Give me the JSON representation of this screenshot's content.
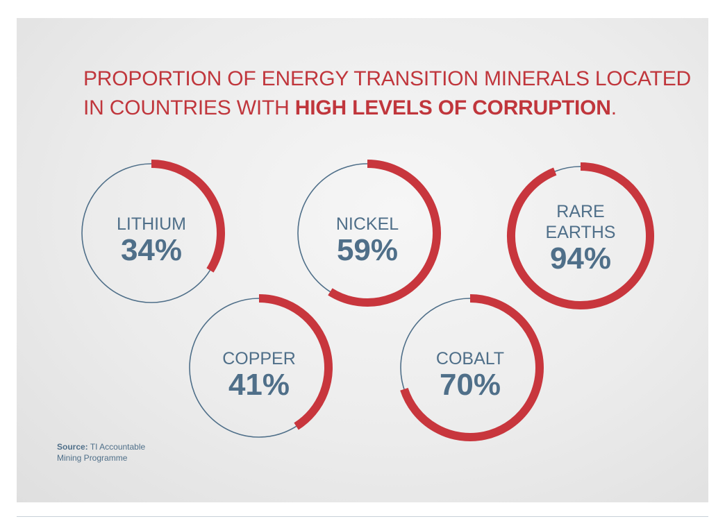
{
  "title": {
    "line1": "PROPORTION OF ENERGY TRANSITION MINERALS LOCATED",
    "line2_prefix": "IN COUNTRIES WITH ",
    "line2_bold": "HIGH LEVELS OF CORRUPTION",
    "line2_suffix": "."
  },
  "source": {
    "label": "Source:",
    "text_line1": "TI Accountable",
    "text_line2": "Mining Programme"
  },
  "colors": {
    "accent_red": "#c8363d",
    "ring_blue": "#4f6f89",
    "label_blue": "#4f6f89"
  },
  "chart_data": {
    "type": "donut",
    "unit": "%",
    "items": [
      {
        "name": "LITHIUM",
        "label_lines": [
          "LITHIUM"
        ],
        "value": 34,
        "value_label": "34%"
      },
      {
        "name": "NICKEL",
        "label_lines": [
          "NICKEL"
        ],
        "value": 59,
        "value_label": "59%"
      },
      {
        "name": "RARE EARTHS",
        "label_lines": [
          "RARE",
          "EARTHS"
        ],
        "value": 94,
        "value_label": "94%"
      },
      {
        "name": "COPPER",
        "label_lines": [
          "COPPER"
        ],
        "value": 41,
        "value_label": "41%"
      },
      {
        "name": "COBALT",
        "label_lines": [
          "COBALT"
        ],
        "value": 70,
        "value_label": "70%"
      }
    ]
  }
}
